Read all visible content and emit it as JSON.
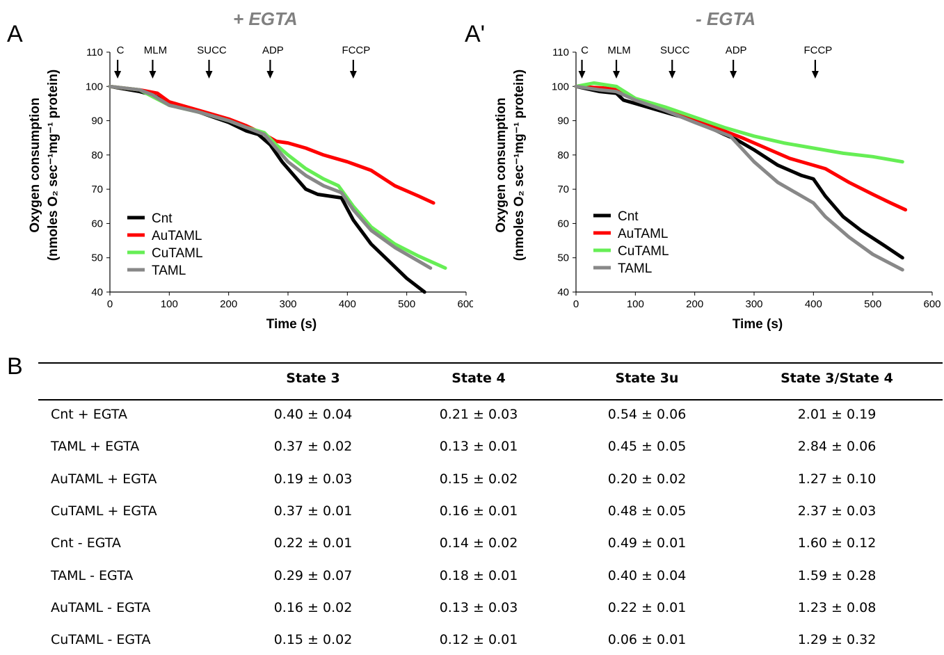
{
  "panel_letters": {
    "a": "A",
    "a_prime": "A'",
    "b": "B"
  },
  "chart_data": [
    {
      "type": "line",
      "title": "+ EGTA",
      "xlabel": "Time (s)",
      "ylabel_line1": "Oxygen consumption",
      "ylabel_line2": "(nmoles O₂ sec⁻¹mg⁻¹ protein)",
      "xlim": [
        0,
        600
      ],
      "ylim": [
        40,
        110
      ],
      "xticks": [
        "0",
        "100",
        "200",
        "300",
        "400",
        "500",
        "600"
      ],
      "yticks": [
        "40",
        "50",
        "60",
        "70",
        "80",
        "90",
        "100",
        "110"
      ],
      "grid": false,
      "legend_position": "bottom-left",
      "annotations": [
        {
          "label": "C",
          "x": 13
        },
        {
          "label": "MLM",
          "x": 72
        },
        {
          "label": "SUCC",
          "x": 167
        },
        {
          "label": "ADP",
          "x": 270
        },
        {
          "label": "FCCP",
          "x": 410
        }
      ],
      "series": [
        {
          "name": "Cnt",
          "color": "#000000",
          "x": [
            0,
            50,
            72,
            100,
            150,
            200,
            230,
            250,
            270,
            290,
            310,
            330,
            350,
            370,
            390,
            410,
            440,
            470,
            500,
            530
          ],
          "y": [
            100,
            98.5,
            97.5,
            95,
            92.5,
            89.5,
            87,
            86,
            83,
            78,
            74,
            70,
            68.5,
            68,
            67.5,
            61,
            54,
            49,
            44,
            40
          ]
        },
        {
          "name": "AuTAML",
          "color": "#ff0000",
          "x": [
            0,
            50,
            80,
            100,
            150,
            200,
            230,
            260,
            280,
            300,
            330,
            360,
            380,
            400,
            440,
            480,
            520,
            545
          ],
          "y": [
            100,
            99,
            98,
            95.5,
            93,
            90.5,
            88.5,
            86,
            84,
            83.5,
            82,
            80,
            79,
            78,
            75.5,
            71,
            68,
            66
          ]
        },
        {
          "name": "CuTAML",
          "color": "#66ee55",
          "x": [
            0,
            50,
            72,
            100,
            150,
            200,
            230,
            260,
            280,
            300,
            330,
            360,
            385,
            410,
            440,
            480,
            520,
            565
          ],
          "y": [
            100,
            99,
            97,
            94.5,
            92.5,
            90,
            88,
            86.5,
            83,
            80,
            76,
            73,
            71,
            65,
            59,
            54,
            50.5,
            47
          ]
        },
        {
          "name": "TAML",
          "color": "#888888",
          "x": [
            0,
            50,
            72,
            100,
            150,
            200,
            230,
            260,
            280,
            300,
            330,
            360,
            390,
            410,
            440,
            480,
            520,
            540
          ],
          "y": [
            100,
            99,
            97.5,
            94.5,
            92.5,
            90,
            88,
            86,
            82,
            78,
            74,
            71,
            69,
            64,
            58,
            53,
            49,
            47
          ]
        }
      ]
    },
    {
      "type": "line",
      "title": "- EGTA",
      "xlabel": "Time (s)",
      "ylabel_line1": "Oxygen consumption",
      "ylabel_line2": "(nmoles O₂ sec⁻¹mg⁻¹ protein)",
      "xlim": [
        0,
        600
      ],
      "ylim": [
        40,
        110
      ],
      "xticks": [
        "0",
        "100",
        "200",
        "300",
        "400",
        "500",
        "600"
      ],
      "yticks": [
        "40",
        "50",
        "60",
        "70",
        "80",
        "90",
        "100",
        "110"
      ],
      "grid": false,
      "legend_position": "bottom-left",
      "annotations": [
        {
          "label": "C",
          "x": 10
        },
        {
          "label": "MLM",
          "x": 68
        },
        {
          "label": "SUCC",
          "x": 162
        },
        {
          "label": "ADP",
          "x": 265
        },
        {
          "label": "FCCP",
          "x": 403
        }
      ],
      "series": [
        {
          "name": "Cnt",
          "color": "#000000",
          "x": [
            0,
            40,
            68,
            80,
            100,
            150,
            200,
            250,
            270,
            300,
            340,
            380,
            400,
            420,
            450,
            480,
            520,
            550
          ],
          "y": [
            100,
            98.5,
            98,
            96,
            95,
            92.5,
            90,
            86,
            84.5,
            81.5,
            77,
            74,
            73,
            68,
            62,
            58,
            53.5,
            50
          ]
        },
        {
          "name": "AuTAML",
          "color": "#ff0000",
          "x": [
            0,
            50,
            68,
            100,
            150,
            200,
            250,
            280,
            320,
            360,
            400,
            420,
            460,
            500,
            530,
            555
          ],
          "y": [
            100,
            99.5,
            99,
            96,
            93.5,
            90.5,
            87,
            85,
            82,
            79,
            77,
            76,
            72,
            68.5,
            66,
            64
          ]
        },
        {
          "name": "CuTAML",
          "color": "#66ee55",
          "x": [
            0,
            30,
            68,
            100,
            150,
            200,
            250,
            300,
            350,
            400,
            450,
            500,
            550
          ],
          "y": [
            100,
            101,
            100,
            96.5,
            94,
            91,
            88,
            85.5,
            83.5,
            82,
            80.5,
            79.5,
            78
          ]
        },
        {
          "name": "TAML",
          "color": "#888888",
          "x": [
            0,
            40,
            68,
            100,
            150,
            200,
            260,
            300,
            340,
            380,
            400,
            420,
            460,
            500,
            550
          ],
          "y": [
            100,
            99,
            98.5,
            96,
            93,
            89.5,
            85.5,
            78,
            72,
            68,
            66,
            62,
            56,
            51,
            46.5
          ]
        }
      ]
    },
    {
      "type": "table",
      "columns": [
        "",
        "State 3",
        "State 4",
        "State 3u",
        "State 3/State 4"
      ],
      "rows": [
        [
          "Cnt + EGTA",
          "0.40 ± 0.04",
          "0.21 ± 0.03",
          "0.54 ± 0.06",
          "2.01 ± 0.19"
        ],
        [
          "TAML + EGTA",
          "0.37 ± 0.02",
          "0.13 ± 0.01",
          "0.45 ± 0.05",
          "2.84 ± 0.06"
        ],
        [
          "AuTAML + EGTA",
          "0.19 ± 0.03",
          "0.15 ± 0.02",
          "0.20 ± 0.02",
          "1.27 ± 0.10"
        ],
        [
          "CuTAML + EGTA",
          "0.37 ± 0.01",
          "0.16 ± 0.01",
          "0.48 ± 0.05",
          "2.37 ± 0.03"
        ],
        [
          "Cnt - EGTA",
          "0.22 ± 0.01",
          "0.14 ± 0.02",
          "0.49 ± 0.01",
          "1.60 ± 0.12"
        ],
        [
          "TAML - EGTA",
          "0.29 ± 0.07",
          "0.18 ± 0.01",
          "0.40 ± 0.04",
          "1.59 ± 0.28"
        ],
        [
          "AuTAML - EGTA",
          "0.16 ± 0.02",
          "0.13 ± 0.03",
          "0.22 ± 0.01",
          "1.23 ± 0.08"
        ],
        [
          "CuTAML - EGTA",
          "0.15 ± 0.02",
          "0.12 ± 0.01",
          "0.06 ± 0.01",
          "1.29 ± 0.32"
        ]
      ]
    }
  ]
}
